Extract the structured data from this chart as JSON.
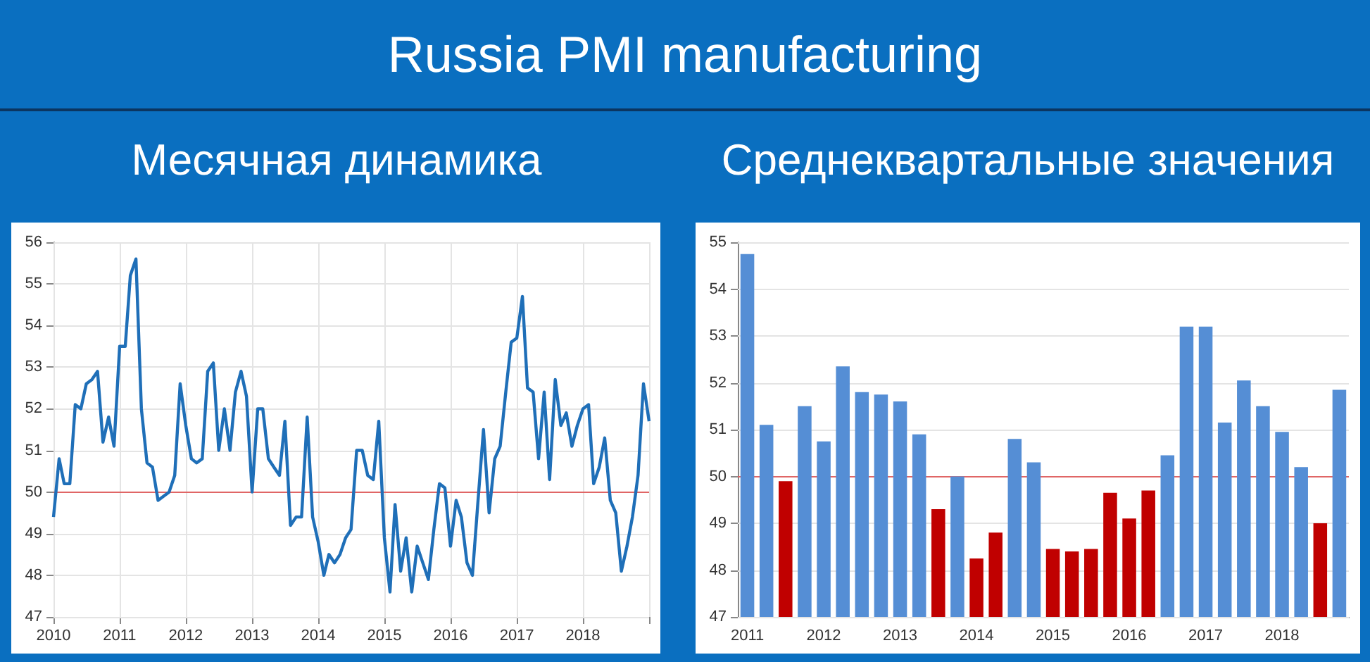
{
  "chart_data": [
    {
      "type": "line",
      "title": "Russia PMI manufacturing",
      "subtitle": "Месячная динамика",
      "x": [
        "2010-01",
        "2010-02",
        "2010-03",
        "2010-04",
        "2010-05",
        "2010-06",
        "2010-07",
        "2010-08",
        "2010-09",
        "2010-10",
        "2010-11",
        "2010-12",
        "2011-01",
        "2011-02",
        "2011-03",
        "2011-04",
        "2011-05",
        "2011-06",
        "2011-07",
        "2011-08",
        "2011-09",
        "2011-10",
        "2011-11",
        "2011-12",
        "2012-01",
        "2012-02",
        "2012-03",
        "2012-04",
        "2012-05",
        "2012-06",
        "2012-07",
        "2012-08",
        "2012-09",
        "2012-10",
        "2012-11",
        "2012-12",
        "2013-01",
        "2013-02",
        "2013-03",
        "2013-04",
        "2013-05",
        "2013-06",
        "2013-07",
        "2013-08",
        "2013-09",
        "2013-10",
        "2013-11",
        "2013-12",
        "2014-01",
        "2014-02",
        "2014-03",
        "2014-04",
        "2014-05",
        "2014-06",
        "2014-07",
        "2014-08",
        "2014-09",
        "2014-10",
        "2014-11",
        "2014-12",
        "2015-01",
        "2015-02",
        "2015-03",
        "2015-04",
        "2015-05",
        "2015-06",
        "2015-07",
        "2015-08",
        "2015-09",
        "2015-10",
        "2015-11",
        "2015-12",
        "2016-01",
        "2016-02",
        "2016-03",
        "2016-04",
        "2016-05",
        "2016-06",
        "2016-07",
        "2016-08",
        "2016-09",
        "2016-10",
        "2016-11",
        "2016-12",
        "2017-01",
        "2017-02",
        "2017-03",
        "2017-04",
        "2017-05",
        "2017-06",
        "2017-07",
        "2017-08",
        "2017-09",
        "2017-10",
        "2017-11",
        "2017-12",
        "2018-01",
        "2018-02",
        "2018-03",
        "2018-04",
        "2018-05",
        "2018-06",
        "2018-07",
        "2018-08",
        "2018-09",
        "2018-10",
        "2018-11",
        "2018-12",
        "2019-01"
      ],
      "series": [
        {
          "color": "#1f6fb8",
          "values": [
            49.4,
            50.8,
            50.2,
            50.2,
            52.1,
            52.0,
            52.6,
            52.7,
            52.9,
            51.2,
            51.8,
            51.1,
            53.5,
            53.5,
            55.2,
            55.6,
            52.0,
            50.7,
            50.6,
            49.8,
            49.9,
            50.0,
            50.4,
            52.6,
            51.6,
            50.8,
            50.7,
            50.8,
            52.9,
            53.1,
            51.0,
            52.0,
            51.0,
            52.4,
            52.9,
            52.3,
            50.0,
            52.0,
            52.0,
            50.8,
            50.6,
            50.4,
            51.7,
            49.2,
            49.4,
            49.4,
            51.8,
            49.4,
            48.8,
            48.0,
            48.5,
            48.3,
            48.5,
            48.9,
            49.1,
            51.0,
            51.0,
            50.4,
            50.3,
            51.7,
            48.9,
            47.6,
            49.7,
            48.1,
            48.9,
            47.6,
            48.7,
            48.3,
            47.9,
            49.1,
            50.2,
            50.1,
            48.7,
            49.8,
            49.4,
            48.3,
            48.0,
            49.8,
            51.5,
            49.5,
            50.8,
            51.1,
            52.4,
            53.6,
            53.7,
            54.7,
            52.5,
            52.4,
            50.8,
            52.4,
            50.3,
            52.7,
            51.6,
            51.9,
            51.1,
            51.6,
            52.0,
            52.1,
            50.2,
            50.6,
            51.3,
            49.8,
            49.5,
            48.1,
            48.7,
            49.4,
            50.4,
            52.6,
            51.7
          ]
        }
      ],
      "xlim": [
        "2010-01",
        "2019-01"
      ],
      "xticks": [
        "2010",
        "2011",
        "2012",
        "2013",
        "2014",
        "2015",
        "2016",
        "2017",
        "2018",
        {
          "value": "2019",
          "label": null
        }
      ],
      "ylim": [
        47,
        56
      ],
      "yticks": [
        47,
        48,
        49,
        50,
        51,
        52,
        53,
        54,
        55,
        56
      ],
      "ref_lines": [
        {
          "axis": "y",
          "value": 50,
          "color": "#e06666"
        }
      ],
      "grid": true,
      "marker": "none",
      "line_style": "solid"
    },
    {
      "type": "bar",
      "subtitle": "Среднеквартальные значения",
      "categories": [
        "2011",
        null,
        null,
        null,
        "2012",
        null,
        null,
        null,
        "2013",
        null,
        null,
        null,
        "2014",
        null,
        null,
        null,
        "2015",
        null,
        null,
        null,
        "2016",
        null,
        null,
        null,
        "2017",
        null,
        null,
        null,
        "2018",
        null,
        null,
        null
      ],
      "values": [
        54.75,
        51.1,
        49.9,
        51.5,
        50.75,
        52.35,
        51.8,
        51.75,
        51.6,
        50.9,
        49.3,
        50.0,
        48.25,
        48.8,
        50.8,
        50.3,
        48.45,
        48.4,
        48.45,
        49.65,
        49.1,
        49.7,
        50.45,
        53.2,
        53.2,
        51.15,
        52.05,
        51.5,
        50.95,
        50.2,
        49.0,
        51.85
      ],
      "colors": [
        "#558ed5",
        "#558ed5",
        "#c00000",
        "#558ed5",
        "#558ed5",
        "#558ed5",
        "#558ed5",
        "#558ed5",
        "#558ed5",
        "#558ed5",
        "#c00000",
        "#558ed5",
        "#c00000",
        "#c00000",
        "#558ed5",
        "#558ed5",
        "#c00000",
        "#c00000",
        "#c00000",
        "#c00000",
        "#c00000",
        "#c00000",
        "#558ed5",
        "#558ed5",
        "#558ed5",
        "#558ed5",
        "#558ed5",
        "#558ed5",
        "#558ed5",
        "#558ed5",
        "#c00000",
        "#558ed5"
      ],
      "ylim": [
        47,
        55
      ],
      "yticks": [
        47,
        48,
        49,
        50,
        51,
        52,
        53,
        54,
        55
      ],
      "ref_lines": [
        {
          "axis": "y",
          "value": 50,
          "color": "#e06666"
        }
      ],
      "grid": "y"
    }
  ]
}
